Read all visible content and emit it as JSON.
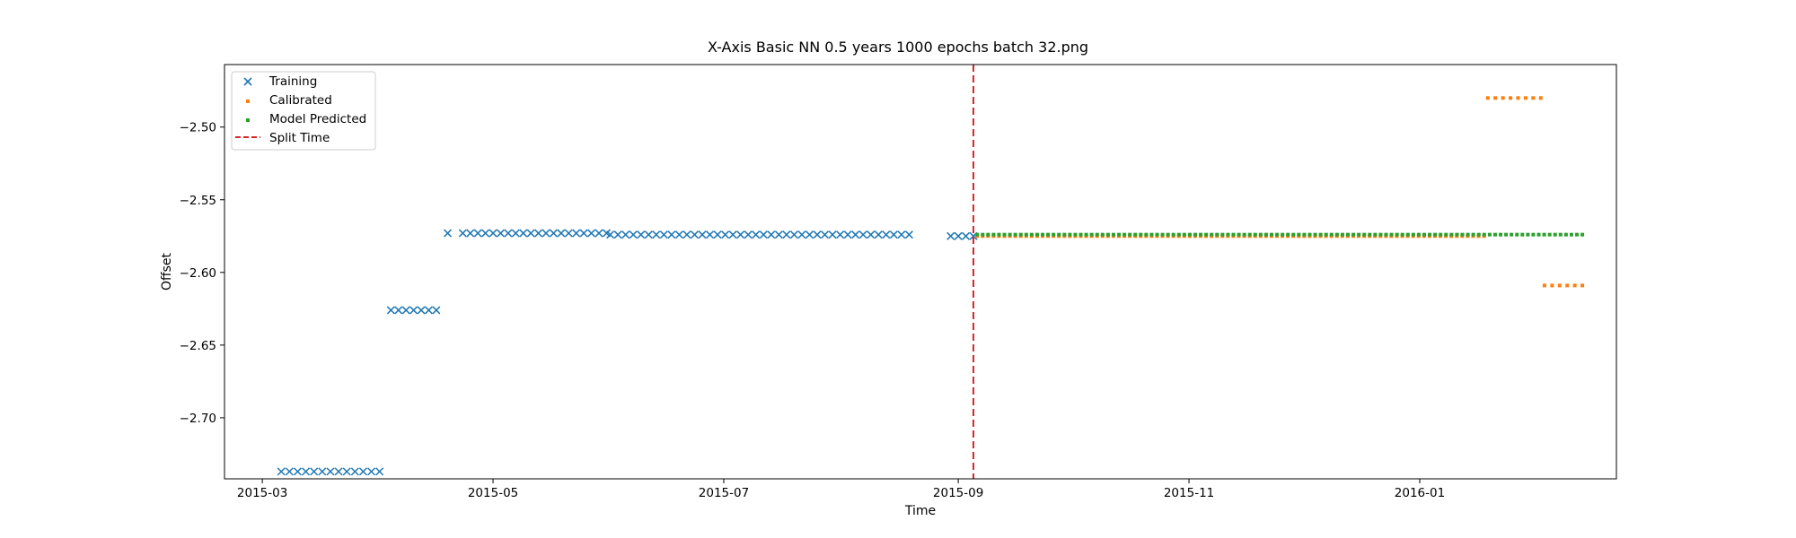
{
  "chart_data": {
    "type": "scatter",
    "title": "X-Axis Basic NN 0.5 years 1000 epochs batch 32.png",
    "xlabel": "Time",
    "ylabel": "Offset",
    "xlim": [
      "2015-02-19",
      "2016-02-22"
    ],
    "ylim": [
      -2.742,
      -2.457
    ],
    "x_ticks": [
      "2015-03",
      "2015-05",
      "2015-07",
      "2015-09",
      "2015-11",
      "2016-01"
    ],
    "y_ticks": [
      -2.5,
      -2.55,
      -2.6,
      -2.65,
      -2.7
    ],
    "grid": false,
    "legend_position": "top-left",
    "split_time": "2015-09-05",
    "series": [
      {
        "name": "Training",
        "marker": "x",
        "color": "#1f77b4",
        "segments": [
          {
            "start": "2015-03-06",
            "end": "2015-04-01",
            "count": 13,
            "y": -2.737
          },
          {
            "start": "2015-04-04",
            "end": "2015-04-16",
            "count": 7,
            "y": -2.626
          },
          {
            "start": "2015-04-19",
            "end": "2015-04-19",
            "count": 1,
            "y": -2.573
          },
          {
            "start": "2015-04-23",
            "end": "2015-05-31",
            "count": 20,
            "y": -2.573
          },
          {
            "start": "2015-06-01",
            "end": "2015-08-19",
            "count": 40,
            "y": -2.574
          },
          {
            "start": "2015-08-30",
            "end": "2015-09-05",
            "count": 4,
            "y": -2.575
          }
        ]
      },
      {
        "name": "Calibrated",
        "marker": "dot",
        "color": "#ff7f0e",
        "segments": [
          {
            "start": "2015-09-06",
            "end": "2016-01-18",
            "count": 94,
            "y": -2.575
          },
          {
            "start": "2016-01-19",
            "end": "2016-02-02",
            "count": 8,
            "y": -2.48
          },
          {
            "start": "2016-02-03",
            "end": "2016-02-13",
            "count": 6,
            "y": -2.609
          }
        ]
      },
      {
        "name": "Model Predicted",
        "marker": "dot",
        "color": "#2ca02c",
        "segments": [
          {
            "start": "2015-09-06",
            "end": "2016-02-13",
            "count": 112,
            "y": -2.574
          }
        ]
      },
      {
        "name": "Split Time",
        "marker": "dashed-line",
        "color": "#d62728"
      }
    ]
  }
}
